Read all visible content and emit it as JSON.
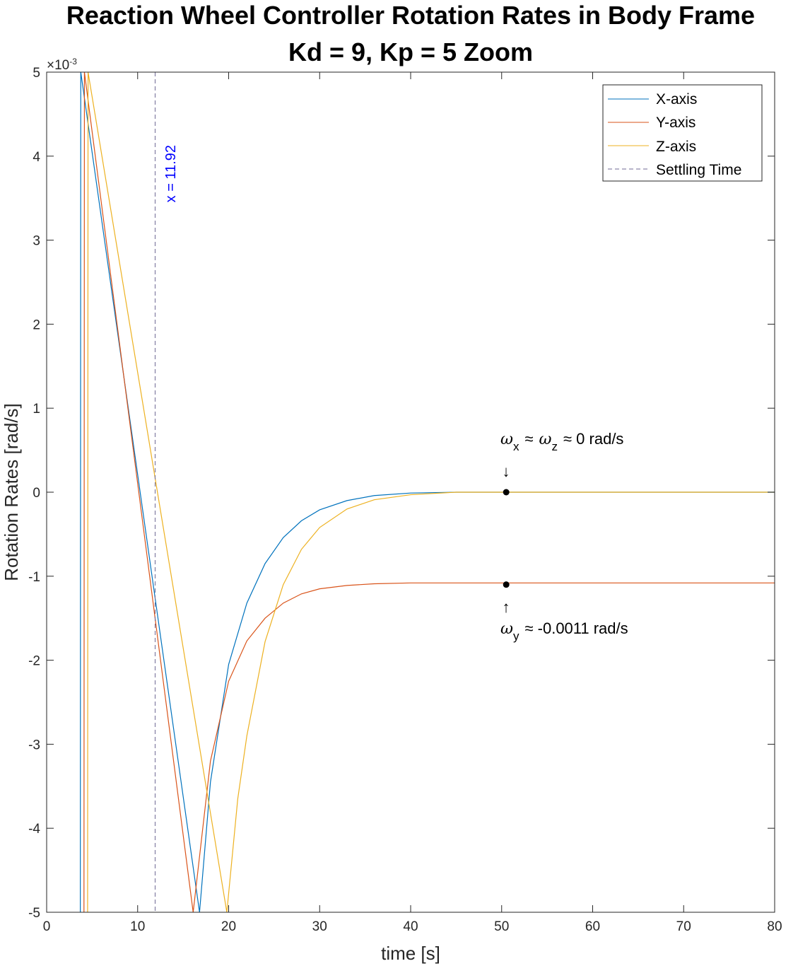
{
  "chart_data": {
    "type": "line",
    "title": "Reaction Wheel Controller Rotation Rates in Body Frame",
    "subtitle": "Kd = 9, Kp = 5 Zoom",
    "xlabel": "time [s]",
    "ylabel": "Rotation Rates  [rad/s]",
    "xlim": [
      0,
      80
    ],
    "ylim": [
      -0.005,
      0.005
    ],
    "y_exponent_label": "×10",
    "y_exponent_power": "-3",
    "y_scale": 0.001,
    "xticks": [
      0,
      10,
      20,
      30,
      40,
      50,
      60,
      70,
      80
    ],
    "xtick_labels": [
      "0",
      "10",
      "20",
      "30",
      "40",
      "50",
      "60",
      "70",
      "80"
    ],
    "yticks": [
      -0.005,
      -0.004,
      -0.003,
      -0.002,
      -0.001,
      0,
      0.001,
      0.002,
      0.003,
      0.004,
      0.005
    ],
    "ytick_labels": [
      "-5",
      "-4",
      "-3",
      "-2",
      "-1",
      "0",
      "1",
      "2",
      "3",
      "4",
      "5"
    ],
    "grid": false,
    "legend_position": "top-right",
    "series": [
      {
        "name": "X-axis",
        "color": "#0072BD",
        "x": [
          3.7,
          3.75,
          16.8,
          18,
          20,
          22,
          24,
          26,
          28,
          30,
          33,
          36,
          40,
          45,
          50,
          60,
          70,
          80
        ],
        "y": [
          -0.005,
          0.005,
          -0.005,
          -0.00345,
          -0.00205,
          -0.00132,
          -0.00085,
          -0.00054,
          -0.00034,
          -0.00021,
          -0.0001,
          -4e-05,
          -1e-05,
          0,
          0,
          0,
          0,
          0
        ]
      },
      {
        "name": "Y-axis",
        "color": "#D95319",
        "x": [
          4.1,
          4.15,
          16.1,
          18,
          20,
          22,
          24,
          26,
          28,
          30,
          33,
          36,
          40,
          45,
          50,
          60,
          70,
          80
        ],
        "y": [
          -0.005,
          0.005,
          -0.005,
          -0.0032,
          -0.00225,
          -0.00177,
          -0.0015,
          -0.00132,
          -0.00121,
          -0.00115,
          -0.00111,
          -0.00109,
          -0.00108,
          -0.00108,
          -0.00108,
          -0.00108,
          -0.00108,
          -0.00108
        ]
      },
      {
        "name": "Z-axis",
        "color": "#EDB120",
        "x": [
          4.5,
          4.55,
          19.8,
          21,
          22,
          24,
          26,
          28,
          30,
          33,
          36,
          40,
          45,
          50,
          60,
          70,
          80
        ],
        "y": [
          -0.005,
          0.005,
          -0.005,
          -0.00365,
          -0.0029,
          -0.00178,
          -0.0011,
          -0.00068,
          -0.00042,
          -0.0002,
          -9e-05,
          -3e-05,
          0,
          0,
          0,
          0,
          0
        ]
      }
    ],
    "settling_time": {
      "name": "Settling Time",
      "x": 11.92,
      "label": "x = 11.92",
      "color": "#6F6A94",
      "label_color": "#0000FF"
    },
    "markers": [
      {
        "x": 50.5,
        "y": 0
      },
      {
        "x": 50.5,
        "y": -0.0011
      }
    ],
    "annotations": {
      "omega": "ω",
      "upper": {
        "sub1": "x",
        "approx1": "≈",
        "sub2": "z",
        "rest": "≈ 0 rad/s",
        "arrow": "↓"
      },
      "lower": {
        "sub1": "y",
        "rest": "≈ -0.0011 rad/s",
        "arrow": "↑"
      }
    }
  }
}
